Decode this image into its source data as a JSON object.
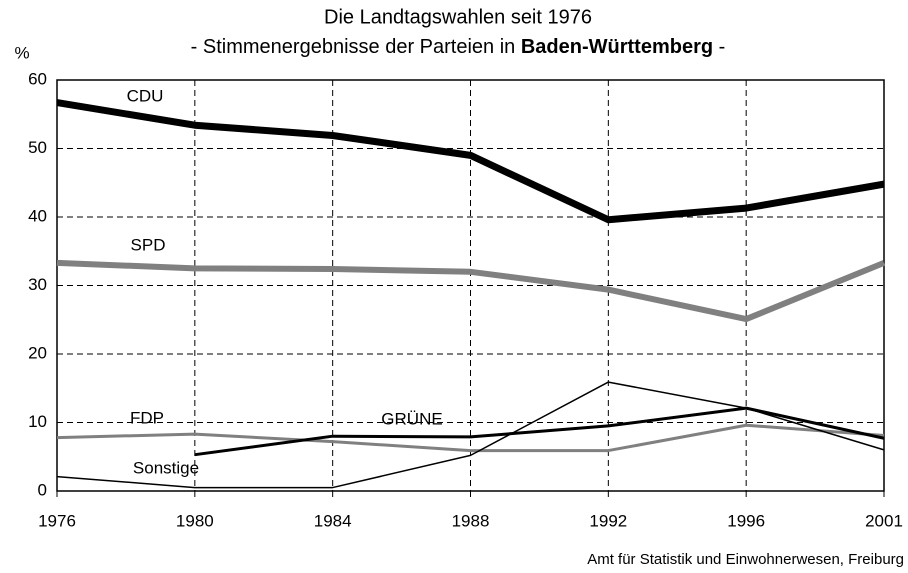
{
  "chart_data": {
    "type": "line",
    "title": "Die Landtagswahlen seit 1976",
    "subtitle": [
      "- Stimmenergebnisse der Parteien in",
      "Baden-Württemberg",
      "-"
    ],
    "y_label": "%",
    "source": "Amt für Statistik und Einwohnerwesen, Freiburg",
    "categories": [
      "1976",
      "1980",
      "1984",
      "1988",
      "1992",
      "1996",
      "2001"
    ],
    "ylim": [
      0,
      60
    ],
    "yticks": [
      0,
      10,
      20,
      30,
      40,
      50,
      60
    ],
    "grid": true,
    "series": [
      {
        "name": "CDU",
        "color": "#000000",
        "width": 7,
        "values": [
          56.7,
          53.4,
          51.9,
          49.0,
          39.6,
          41.3,
          44.8
        ]
      },
      {
        "name": "SPD",
        "color": "#808080",
        "width": 6,
        "values": [
          33.3,
          32.5,
          32.4,
          32.0,
          29.4,
          25.1,
          33.3
        ]
      },
      {
        "name": "FDP",
        "color": "#808080",
        "width": 3,
        "values": [
          7.8,
          8.3,
          7.2,
          5.9,
          5.9,
          9.6,
          8.1
        ]
      },
      {
        "name": "GRÜNE",
        "color": "#000000",
        "width": 3,
        "values": [
          null,
          5.3,
          8.0,
          7.9,
          9.5,
          12.1,
          7.7
        ]
      },
      {
        "name": "Sonstige",
        "color": "#000000",
        "width": 1.5,
        "values": [
          2.1,
          0.5,
          0.5,
          5.2,
          15.9,
          12.1,
          6.0
        ]
      }
    ]
  }
}
